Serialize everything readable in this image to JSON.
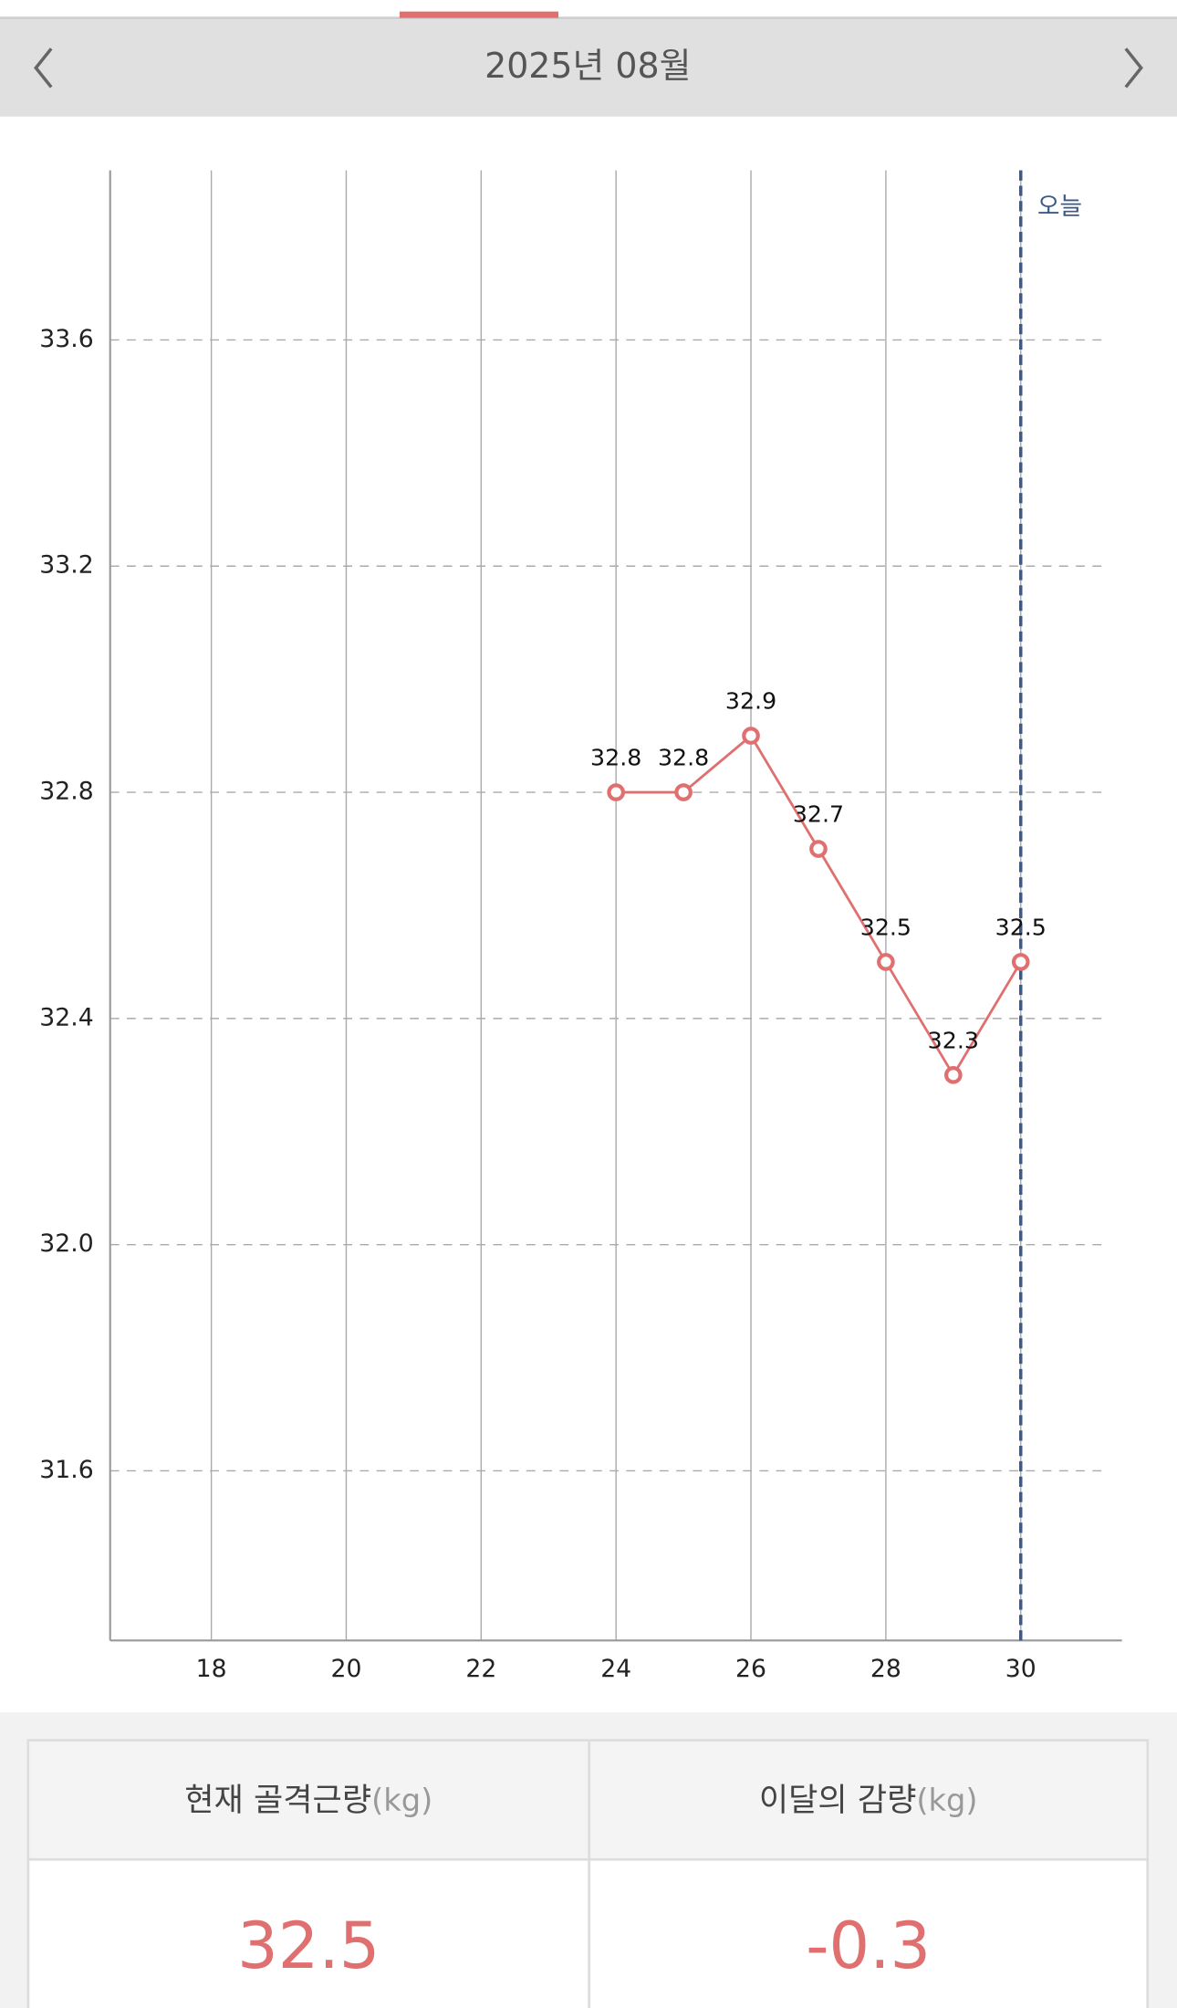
{
  "header": {
    "title": "2025년 08월"
  },
  "chart_data": {
    "type": "line",
    "x": [
      24,
      25,
      26,
      27,
      28,
      29,
      30
    ],
    "values": [
      32.8,
      32.8,
      32.9,
      32.7,
      32.5,
      32.3,
      32.5
    ],
    "color": "#e07070",
    "xlim": [
      16.5,
      31.5
    ],
    "xticks": [
      18,
      20,
      22,
      24,
      26,
      28,
      30
    ],
    "ylim": [
      31.3,
      33.9
    ],
    "yticks": [
      33.6,
      33.2,
      32.8,
      32.4,
      {
        "value": 32,
        "label": "32.0"
      },
      31.6
    ],
    "grid": true,
    "today_x": 30,
    "today_label": "오늘",
    "today_color": "#3a5a8c"
  },
  "summary": {
    "columns": [
      {
        "label": "현재 골격근량",
        "unit": "(kg)",
        "value": "32.5"
      },
      {
        "label": "이달의 감량",
        "unit": "(kg)",
        "value": "-0.3"
      }
    ]
  }
}
